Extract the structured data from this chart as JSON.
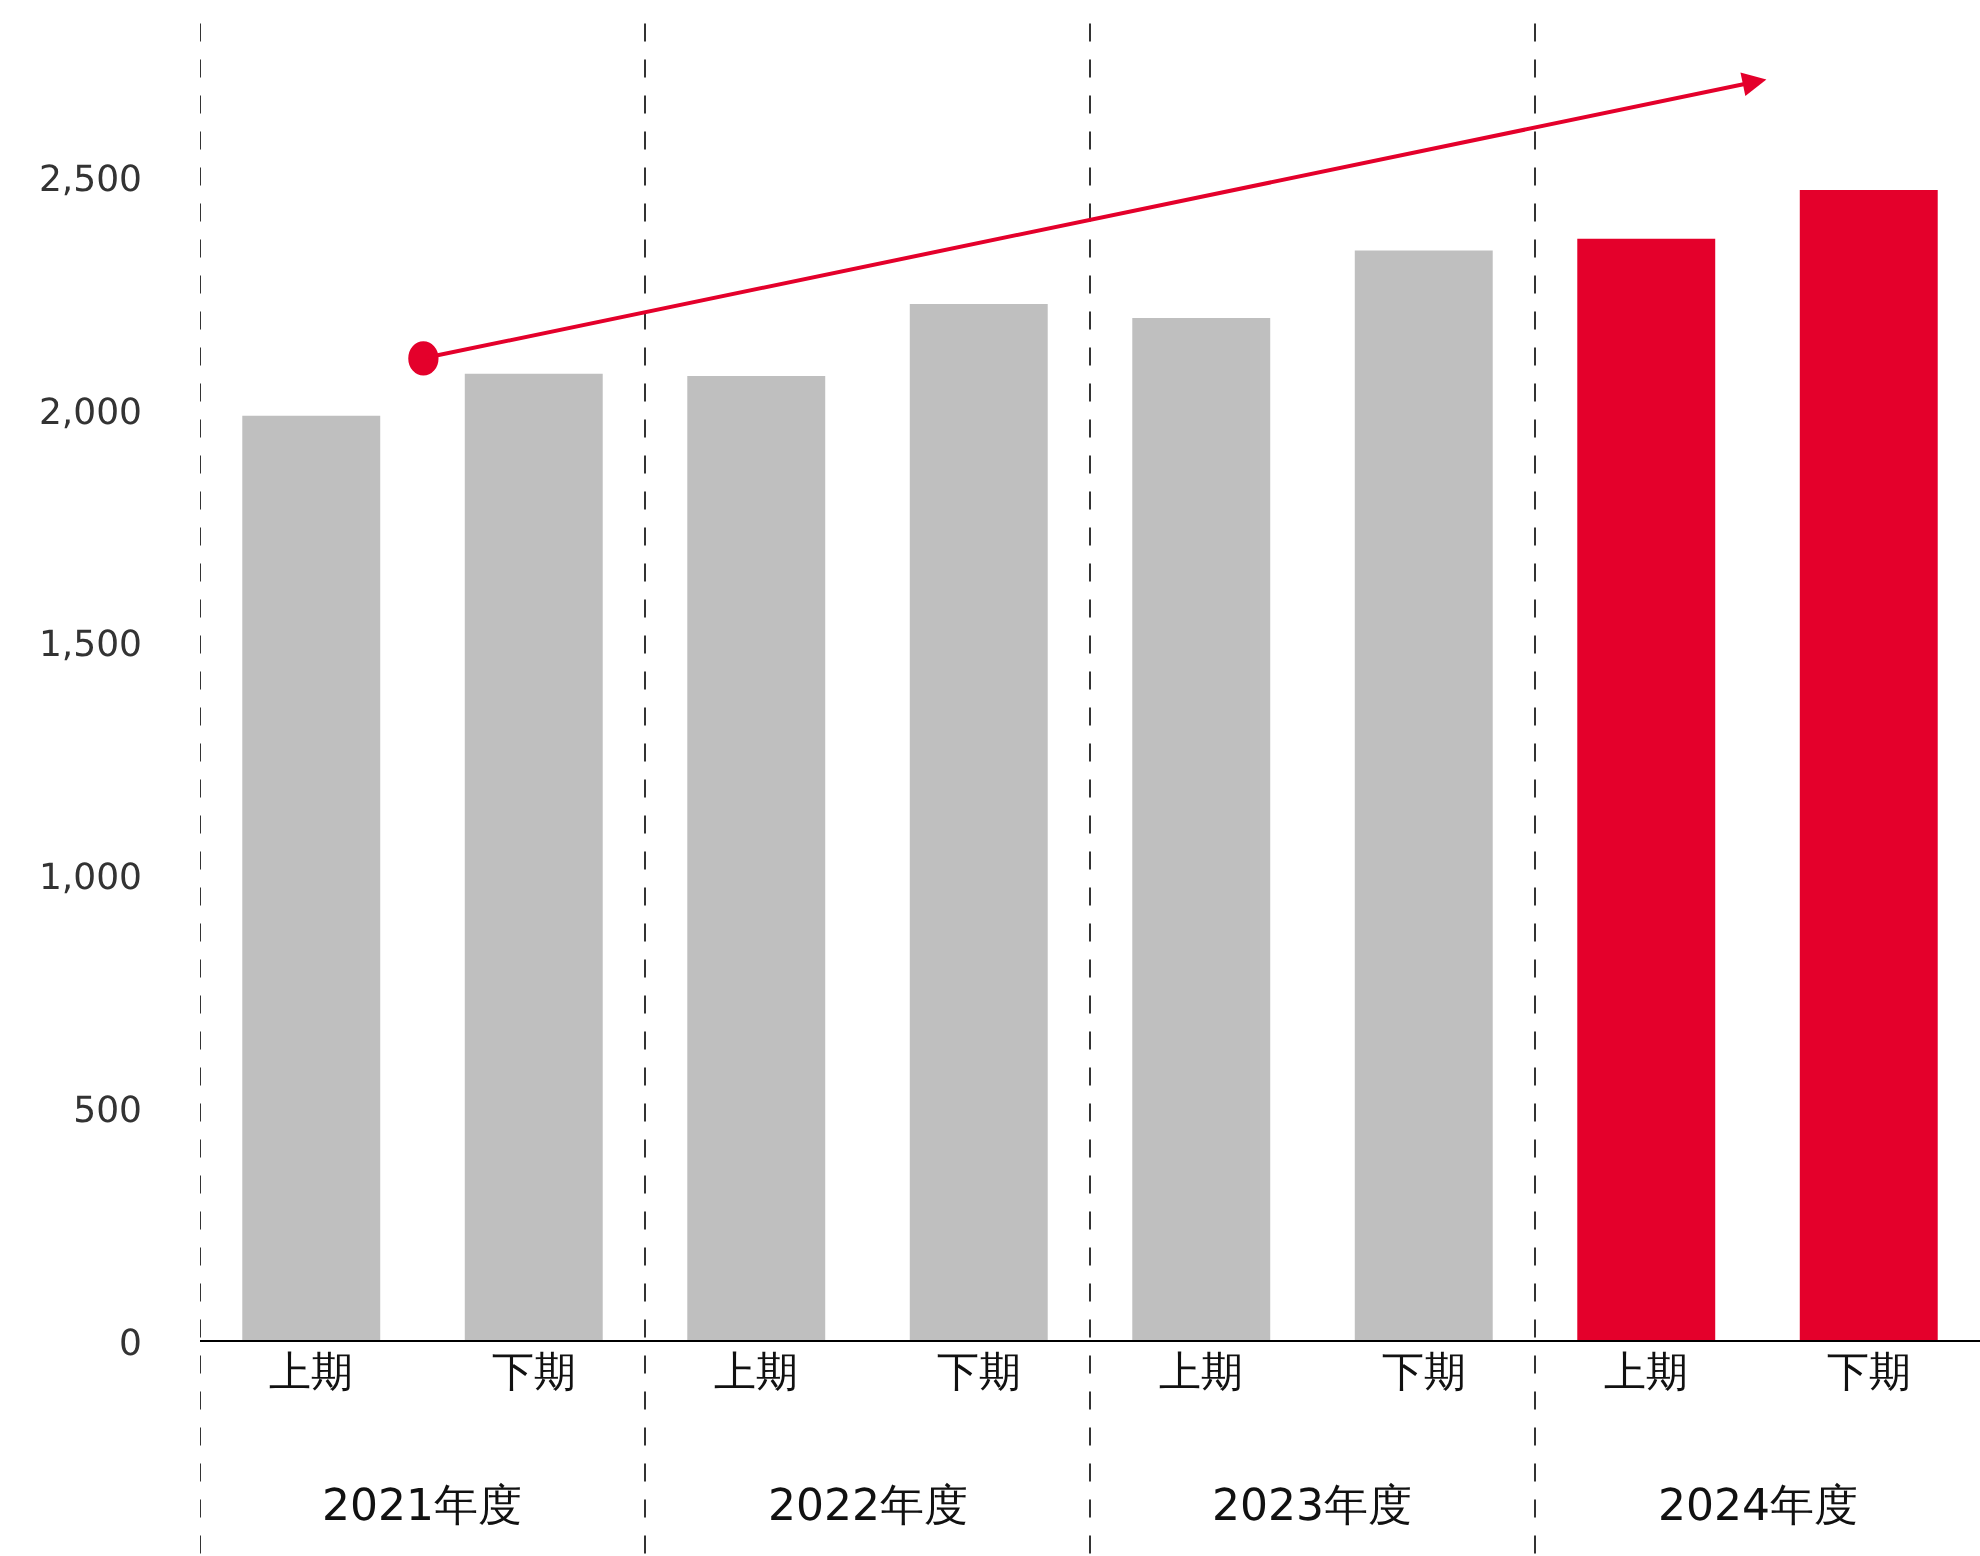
{
  "chart_data": {
    "type": "bar",
    "categories": [
      "上期",
      "下期",
      "上期",
      "下期",
      "上期",
      "下期",
      "上期",
      "下期"
    ],
    "values": [
      1990,
      2080,
      2075,
      2230,
      2200,
      2345,
      2370,
      2475
    ],
    "colors": [
      "#bfbfbf",
      "#bfbfbf",
      "#bfbfbf",
      "#bfbfbf",
      "#bfbfbf",
      "#bfbfbf",
      "#e4002b",
      "#e4002b"
    ],
    "ylim": [
      0,
      2840
    ],
    "yticks": [
      {
        "value": 0,
        "label": "0"
      },
      {
        "value": 500,
        "label": "500"
      },
      {
        "value": 1000,
        "label": "1,000"
      },
      {
        "value": 1500,
        "label": "1,500"
      },
      {
        "value": 2000,
        "label": "2,000"
      },
      {
        "value": 2500,
        "label": "2,500"
      }
    ],
    "annotations": [
      "2021年度",
      "2022年度",
      "2023年度",
      "2024年度"
    ]
  }
}
